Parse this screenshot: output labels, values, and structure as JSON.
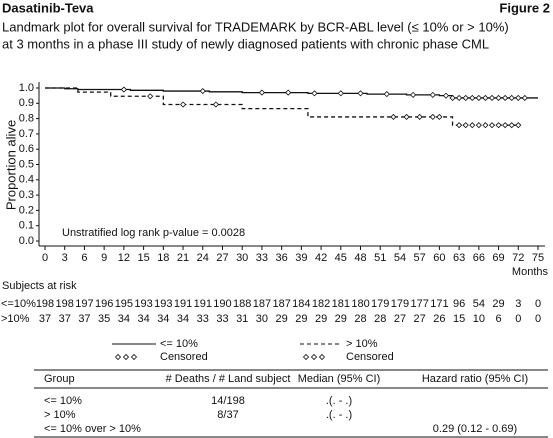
{
  "header": {
    "product": "Dasatinib-Teva",
    "figure": "Figure 2"
  },
  "chart_data": {
    "type": "step",
    "title": [
      "Landmark plot for overall survival for TRADEMARK by BCR-ABL level (≤ 10% or > 10%)",
      "at 3 months in a phase III study of newly diagnosed patients with chronic phase CML"
    ],
    "ylabel": "Proportion alive",
    "xlabel": "Months",
    "annotation": "Unstratified log rank p-value = 0.0028",
    "xlim": [
      0,
      75
    ],
    "ylim": [
      0,
      1
    ],
    "xticks": [
      0,
      3,
      6,
      9,
      12,
      15,
      18,
      21,
      24,
      27,
      30,
      33,
      36,
      39,
      42,
      45,
      48,
      51,
      54,
      57,
      60,
      63,
      66,
      69,
      72,
      75
    ],
    "yticks": [
      {
        "value": 0,
        "label": "0.0"
      },
      0.1,
      0.2,
      0.3,
      0.4,
      0.5,
      0.6,
      0.7,
      0.8,
      0.9,
      {
        "value": 1,
        "label": "1.0"
      }
    ],
    "censored_label": "Censored",
    "series": [
      {
        "name": "<= 10%",
        "color": "#111111",
        "dash": false,
        "x": [
          0,
          3,
          5,
          13,
          18,
          25,
          30,
          40,
          49,
          55,
          60,
          62,
          75
        ],
        "values": [
          1.0,
          0.995,
          0.99,
          0.985,
          0.98,
          0.975,
          0.97,
          0.965,
          0.96,
          0.955,
          0.95,
          0.935,
          0.935
        ],
        "censored_x": [
          12,
          24,
          33,
          37,
          41,
          45,
          48,
          52,
          56,
          59,
          61,
          62,
          63,
          64,
          65,
          66,
          67,
          68,
          69,
          70,
          71,
          72,
          73
        ]
      },
      {
        "name": "> 10%",
        "color": "#111111",
        "dash": true,
        "x": [
          0,
          5,
          10,
          18,
          30,
          40,
          62,
          72
        ],
        "values": [
          1.0,
          0.973,
          0.946,
          0.892,
          0.865,
          0.811,
          0.757,
          0.757
        ],
        "censored_x": [
          16,
          21,
          26,
          53,
          55,
          57,
          59,
          60,
          63,
          64,
          65,
          66,
          67,
          68,
          69,
          70,
          71,
          72
        ]
      }
    ]
  },
  "risk_table": {
    "title": "Subjects at risk",
    "rows": [
      {
        "label": "<=10%",
        "values": [
          198,
          198,
          197,
          196,
          195,
          193,
          193,
          191,
          191,
          190,
          188,
          187,
          187,
          184,
          182,
          181,
          180,
          179,
          179,
          177,
          171,
          96,
          54,
          29,
          3,
          0
        ]
      },
      {
        "label": ">10%",
        "values": [
          37,
          37,
          37,
          35,
          34,
          34,
          34,
          34,
          33,
          33,
          31,
          30,
          29,
          29,
          29,
          29,
          28,
          28,
          27,
          27,
          26,
          15,
          10,
          6,
          0,
          0
        ]
      }
    ]
  },
  "table": {
    "header": [
      "Group",
      "# Deaths / # Land subject",
      "Median (95% CI)",
      "Hazard ratio (95% CI)"
    ],
    "rows": [
      {
        "group": "<= 10%",
        "deaths": "14/198",
        "median": ".(. - .)"
      },
      {
        "group": "> 10%",
        "deaths": "8/37",
        "median": ".(. - .)"
      },
      {
        "group": "<= 10% over > 10%",
        "hazard_ratio": "0.29 (0.12 - 0.69)"
      }
    ]
  }
}
